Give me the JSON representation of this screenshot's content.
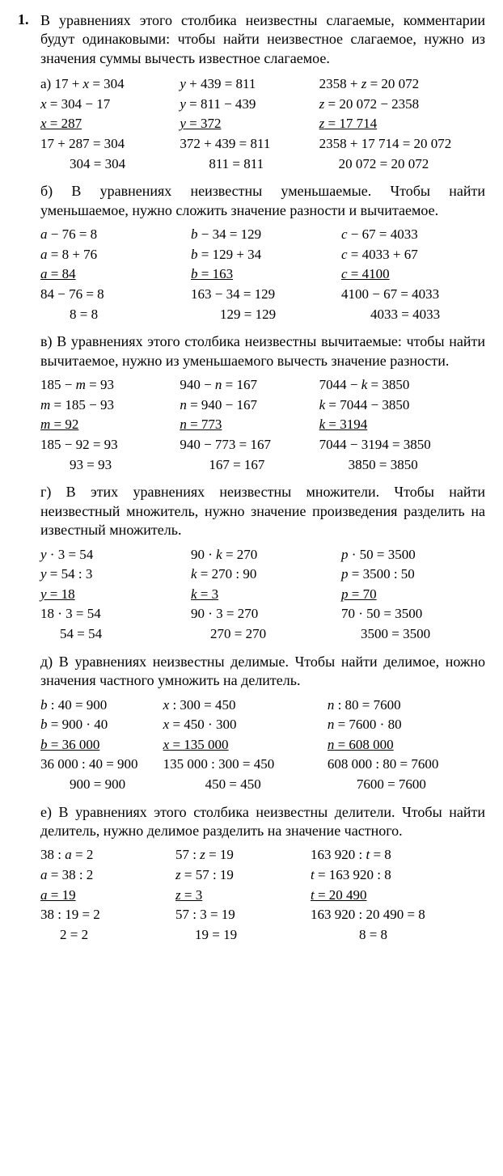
{
  "problem_number": "1.",
  "sections": [
    {
      "intro": "В уравнениях этого столбика неизвестны слагаемые, комментарии будут одинаковыми: чтобы найти неизвестное слагаемое, нужно из значения суммы вычесть известное слагаемое.",
      "label": "а)",
      "cols": [
        {
          "l1": "17 + x = 304",
          "l2": "x = 304 − 17",
          "l3": "x = 287",
          "l4": "17 + 287 = 304",
          "l5": "304 = 304",
          "var": "x",
          "pad5": "indent1"
        },
        {
          "l1": "y + 439 = 811",
          "l2": "y = 811 − 439",
          "l3": "y = 372",
          "l4": "372 + 439 = 811",
          "l5": "811 = 811",
          "var": "y",
          "pad5": "indent1"
        },
        {
          "l1": "2358 + z = 20 072",
          "l2": "z = 20 072 − 2358",
          "l3": "z = 17 714",
          "l4": "2358 + 17 714 = 20 072",
          "l5": "20 072 = 20 072",
          "var": "z",
          "pad5": "indentS",
          "wide": true
        }
      ]
    },
    {
      "intro": "В уравнениях неизвестны уменьшаемые. Чтобы найти уменьшаемое, нужно сложить значение разности и вычитаемое.",
      "label": "б)",
      "cols": [
        {
          "l1": "a − 76 = 8",
          "l2": "a = 8 + 76",
          "l3": "a = 84",
          "l4": "84 − 76 = 8",
          "l5": "8 = 8",
          "var": "a",
          "pad5": "indent1"
        },
        {
          "l1": "b − 34 = 129",
          "l2": "b = 129 + 34",
          "l3": "b = 163",
          "l4": "163 − 34 = 129",
          "l5": "129 = 129",
          "var": "b",
          "pad5": "indent1"
        },
        {
          "l1": "c − 67 = 4033",
          "l2": "c = 4033 + 67",
          "l3": "c = 4100",
          "l4": "4100 − 67 = 4033",
          "l5": "4033 = 4033",
          "var": "c",
          "pad5": "indent1"
        }
      ]
    },
    {
      "intro": "В уравнениях этого столбика неизвестны вычитаемые: чтобы найти вычитаемое, нужно из уменьшаемого вычесть значение разности.",
      "label": "в)",
      "cols": [
        {
          "l1": "185 − m = 93",
          "l2": "m = 185 − 93",
          "l3": "m = 92",
          "l4": "185 − 92 = 93",
          "l5": "93 = 93",
          "var": "m",
          "pad5": "indent1"
        },
        {
          "l1": "940 − n = 167",
          "l2": "n = 940 − 167",
          "l3": "n = 773",
          "l4": "940 − 773 = 167",
          "l5": "167 = 167",
          "var": "n",
          "pad5": "indent1"
        },
        {
          "l1": "7044 − k = 3850",
          "l2": "k = 7044 − 3850",
          "l3": "k = 3194",
          "l4": "7044 − 3194 = 3850",
          "l5": "3850 = 3850",
          "var": "k",
          "pad5": "indent1",
          "wide": true
        }
      ]
    },
    {
      "intro": "В этих уравнениях неизвестны множители. Чтобы найти неизвестный множитель, нужно значение произведения разделить на известный множитель.",
      "label": "г)",
      "cols": [
        {
          "l1": "y · 3 = 54",
          "l2": "y = 54 : 3",
          "l3": "y = 18",
          "l4": "18 · 3 = 54",
          "l5": "54 = 54",
          "var": "y",
          "pad5": "indentS"
        },
        {
          "l1": "90 · k = 270",
          "l2": "k = 270 : 90",
          "l3": "k = 3",
          "l4": "90 · 3 = 270",
          "l5": "270 = 270",
          "var": "k",
          "pad5": "indentS"
        },
        {
          "l1": "p · 50 = 3500",
          "l2": "p = 3500 : 50",
          "l3": "p = 70",
          "l4": "70 · 50 = 3500",
          "l5": "3500 = 3500",
          "var": "p",
          "pad5": "indentS"
        }
      ]
    },
    {
      "intro": "В уравнениях неизвестны делимые. Чтобы найти делимое, ножно значения частного умножить на делитель.",
      "label": "д)",
      "cols": [
        {
          "l1": "b : 40 = 900",
          "l2": "b = 900 · 40",
          "l3": "b = 36 000",
          "l4": "36 000 : 40 = 900",
          "l5": "900 = 900",
          "var": "b",
          "pad5": "indent1",
          "narrow": true
        },
        {
          "l1": "x : 300 = 450",
          "l2": "x = 450 · 300",
          "l3": "x = 135 000",
          "l4": "135 000 : 300 = 450",
          "l5": "450 = 450",
          "var": "x",
          "pad5": "indent2",
          "wide": true
        },
        {
          "l1": "n : 80 = 7600",
          "l2": "n = 7600 · 80",
          "l3": "n = 608 000",
          "l4": "608 000 : 80 = 7600",
          "l5": "7600 = 7600",
          "var": "n",
          "pad5": "indent1",
          "wide": true
        }
      ]
    },
    {
      "intro": "В уравнениях этого столбика неизвестны делители. Чтобы найти делитель, нужно делимое разделить на значение частного.",
      "label": "е)",
      "cols": [
        {
          "l1": "38 : a = 2",
          "l2": "a = 38 : 2",
          "l3": "a = 19",
          "l4": "38 : 19 = 2",
          "l5": "2 = 2",
          "var": "a",
          "pad5": "indentS",
          "narrow": true
        },
        {
          "l1": "57 : z = 19",
          "l2": "z = 57 : 19",
          "l3": "z = 3",
          "l4": "57 : 3 = 19",
          "l5": "19 = 19",
          "var": "z",
          "pad5": "indentS",
          "narrow": true
        },
        {
          "l1": "163 920 : t = 8",
          "l2": "t = 163 920 : 8",
          "l3": "t = 20 490",
          "l4": "163 920 : 20 490 = 8",
          "l5": "8 = 8",
          "var": "t",
          "pad5": "indent3",
          "wide": true
        }
      ]
    }
  ]
}
